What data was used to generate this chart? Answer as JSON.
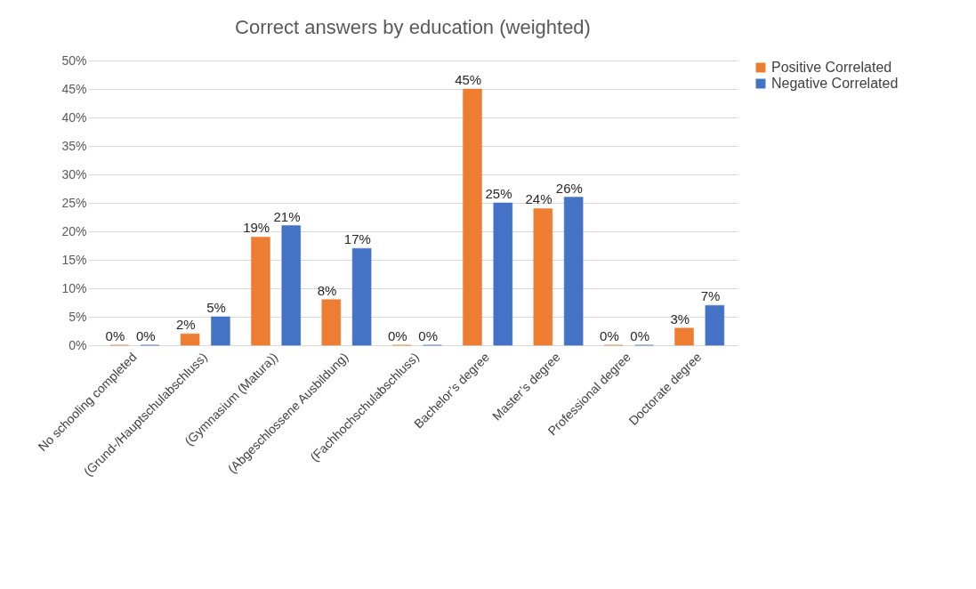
{
  "chart_data": {
    "type": "bar",
    "title": "Correct answers by education (weighted)",
    "categories": [
      "No schooling completed",
      "(Grund-/Hauptschulabschluss)",
      "(Gymnasium (Matura))",
      "(Abgeschlossene Ausbildung)",
      "(Fachhochschulabschluss)",
      "Bachelor’s degree",
      "Master’s degree",
      "Professional degree",
      "Doctorate degree"
    ],
    "series": [
      {
        "name": "Positive Correlated",
        "color": "#ed7d31",
        "values": [
          0,
          2,
          19,
          8,
          0,
          45,
          24,
          0,
          3
        ],
        "value_labels": [
          "0%",
          "2%",
          "19%",
          "8%",
          "0%",
          "45%",
          "24%",
          "0%",
          "3%"
        ]
      },
      {
        "name": "Negative Correlated",
        "color": "#4472c4",
        "values": [
          0,
          5,
          21,
          17,
          0,
          25,
          26,
          0,
          7
        ],
        "value_labels": [
          "0%",
          "5%",
          "21%",
          "17%",
          "0%",
          "25%",
          "26%",
          "0%",
          "7%"
        ]
      }
    ],
    "ylim": [
      0,
      50
    ],
    "yticks": [
      {
        "value": 0,
        "label": "0%"
      },
      {
        "value": 5,
        "label": "5%"
      },
      {
        "value": 10,
        "label": "10%"
      },
      {
        "value": 15,
        "label": "15%"
      },
      {
        "value": 20,
        "label": "20%"
      },
      {
        "value": 25,
        "label": "25%"
      },
      {
        "value": 30,
        "label": "30%"
      },
      {
        "value": 35,
        "label": "35%"
      },
      {
        "value": 40,
        "label": "40%"
      },
      {
        "value": 45,
        "label": "45%"
      },
      {
        "value": 50,
        "label": "50%"
      }
    ],
    "grid": "y",
    "legend": "right"
  }
}
